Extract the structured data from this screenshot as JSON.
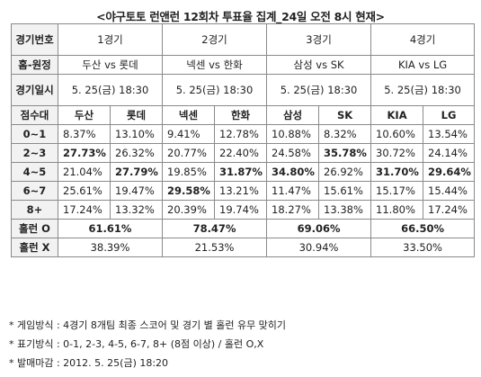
{
  "title": "<야구토토 런앤런 12회차 투표율 집계_24일 오전 8시 현재>",
  "labels": {
    "game_no": "경기번호",
    "home_away": "홈-원정",
    "game_datetime": "경기일시",
    "score_diff": "점수대",
    "run_o": "홀런 O",
    "run_x": "홀런 X"
  },
  "games": [
    {
      "no": "1경기",
      "matchup": "두산 vs 롯데",
      "datetime": "5. 25(금) 18:30",
      "teams": [
        "두산",
        "롯데"
      ],
      "rows": [
        [
          "8.37%",
          "13.10%"
        ],
        [
          "27.73%",
          "26.32%"
        ],
        [
          "21.04%",
          "27.79%"
        ],
        [
          "25.61%",
          "19.47%"
        ],
        [
          "17.24%",
          "13.32%"
        ]
      ],
      "run_o": "61.61%",
      "run_x": "38.39%"
    },
    {
      "no": "2경기",
      "matchup": "넥센 vs 한화",
      "datetime": "5. 25(금) 18:30",
      "teams": [
        "넥센",
        "한화"
      ],
      "rows": [
        [
          "9.41%",
          "12.78%"
        ],
        [
          "20.77%",
          "22.40%"
        ],
        [
          "19.85%",
          "31.87%"
        ],
        [
          "29.58%",
          "13.21%"
        ],
        [
          "20.39%",
          "19.74%"
        ]
      ],
      "run_o": "78.47%",
      "run_x": "21.53%"
    },
    {
      "no": "3경기",
      "matchup": "삼성 vs SK",
      "datetime": "5. 25(금) 18:30",
      "teams": [
        "삼성",
        "SK"
      ],
      "rows": [
        [
          "10.88%",
          "8.32%"
        ],
        [
          "24.58%",
          "35.78%"
        ],
        [
          "34.80%",
          "26.92%"
        ],
        [
          "11.47%",
          "15.61%"
        ],
        [
          "18.27%",
          "13.38%"
        ]
      ],
      "run_o": "69.06%",
      "run_x": "30.94%"
    },
    {
      "no": "4경기",
      "matchup": "KIA vs LG",
      "datetime": "5. 25(금) 18:30",
      "teams": [
        "KIA",
        "LG"
      ],
      "rows": [
        [
          "10.60%",
          "13.54%"
        ],
        [
          "30.72%",
          "24.14%"
        ],
        [
          "31.70%",
          "29.64%"
        ],
        [
          "15.17%",
          "15.44%"
        ],
        [
          "11.80%",
          "17.24%"
        ]
      ],
      "run_o": "66.50%",
      "run_x": "33.50%"
    }
  ],
  "score_ranges": [
    "0~1",
    "2~3",
    "4~5",
    "6~7",
    "8+"
  ],
  "notes": [
    "* 게임방식 : 4경기 8개팀 최종 스코어 및 경기 별 홀런 유무 맞히기",
    "* 표기방식 : 0-1, 2-3, 4-5, 6-7, 8+ (8점 이상) /  홀런 O,X",
    "* 발매마감 : 2012. 5. 25(금) 18:20"
  ]
}
